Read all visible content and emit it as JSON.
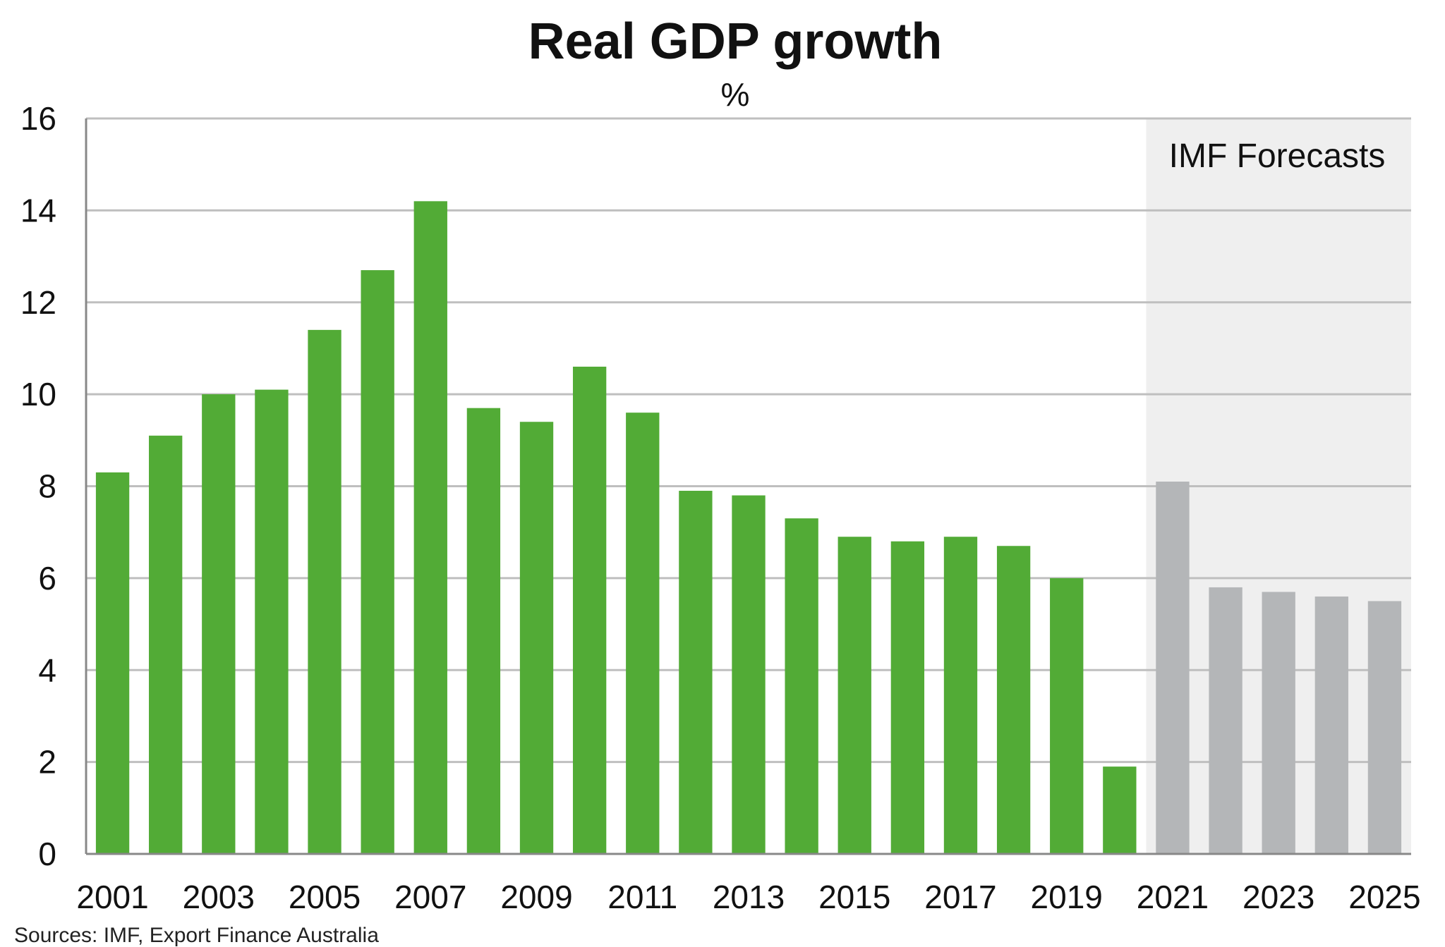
{
  "chart_data": {
    "type": "bar",
    "title": "Real GDP growth",
    "subtitle": "%",
    "xlabel": "",
    "ylabel": "",
    "categories": [
      "2001",
      "2002",
      "2003",
      "2004",
      "2005",
      "2006",
      "2007",
      "2008",
      "2009",
      "2010",
      "2011",
      "2012",
      "2013",
      "2014",
      "2015",
      "2016",
      "2017",
      "2018",
      "2019",
      "2020",
      "2021",
      "2022",
      "2023",
      "2024",
      "2025"
    ],
    "x_tick_labels": [
      "2001",
      "2003",
      "2005",
      "2007",
      "2009",
      "2011",
      "2013",
      "2015",
      "2017",
      "2019",
      "2021",
      "2023",
      "2025"
    ],
    "y_tick_labels": [
      "0",
      "2",
      "4",
      "6",
      "8",
      "10",
      "12",
      "14",
      "16"
    ],
    "ylim": [
      0,
      16
    ],
    "grid": true,
    "series": [
      {
        "values": [
          8.3,
          9.1,
          10.0,
          10.1,
          11.4,
          12.7,
          14.2,
          9.7,
          9.4,
          10.6,
          9.6,
          7.9,
          7.8,
          7.3,
          6.9,
          6.8,
          6.9,
          6.7,
          6.0,
          1.9,
          null,
          null,
          null,
          null,
          null
        ]
      },
      {
        "values": [
          null,
          null,
          null,
          null,
          null,
          null,
          null,
          null,
          null,
          null,
          null,
          null,
          null,
          null,
          null,
          null,
          null,
          null,
          null,
          null,
          8.1,
          5.8,
          5.7,
          5.6,
          5.5
        ]
      }
    ],
    "colors": {
      "actual": "#52ab36",
      "forecast": "#b4b6b8",
      "forecast_band": "#efefef",
      "grid": "#bfbfbf",
      "axis": "#888888"
    },
    "annotations": [
      {
        "text": "IMF Forecasts",
        "region_start": "2021",
        "region_end": "2025"
      }
    ],
    "source": "Sources: IMF, Export Finance Australia"
  }
}
